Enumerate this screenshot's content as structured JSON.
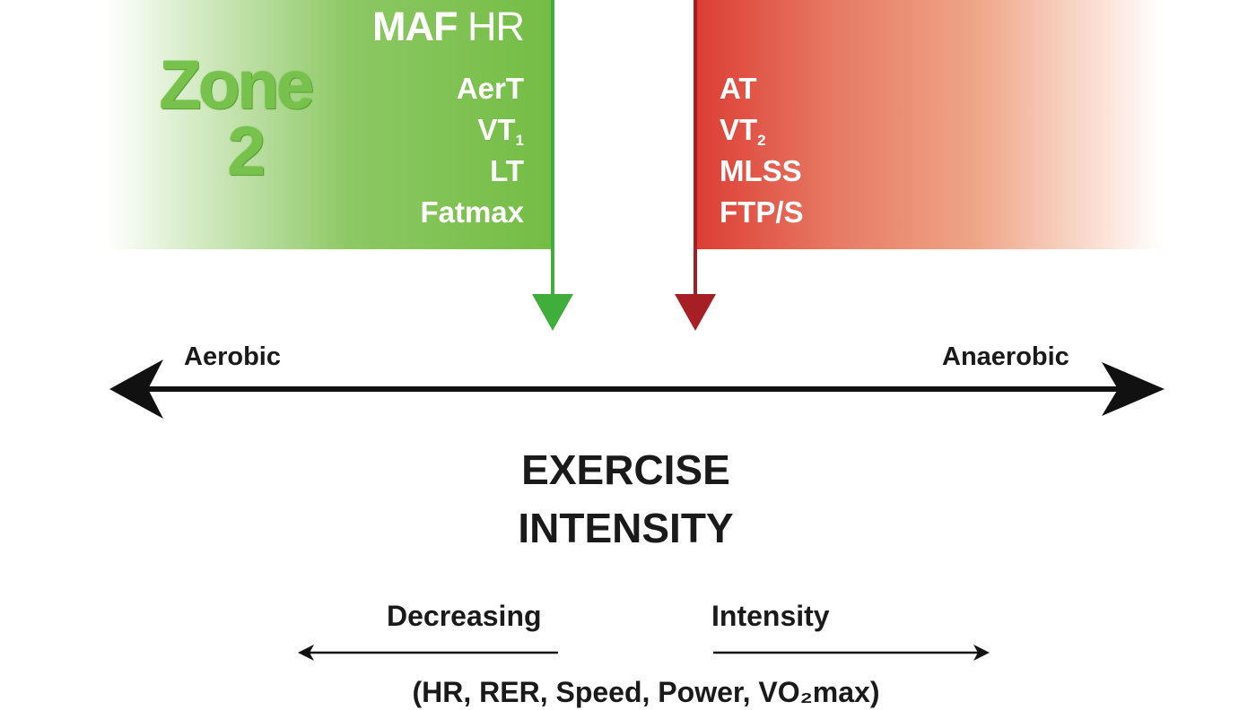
{
  "maf_title": {
    "bold": "MAF",
    "light": "HR"
  },
  "zone": {
    "word": "Zone",
    "number": "2"
  },
  "aerobic_thresholds": [
    {
      "main": "AerT",
      "sub": ""
    },
    {
      "main": "VT",
      "sub": "1"
    },
    {
      "main": "LT",
      "sub": ""
    },
    {
      "main": "Fatmax",
      "sub": ""
    }
  ],
  "anaerobic_thresholds": [
    {
      "main": "AT",
      "sub": ""
    },
    {
      "main": "VT",
      "sub": "2"
    },
    {
      "main": "MLSS",
      "sub": ""
    },
    {
      "main": "FTP/S",
      "sub": ""
    }
  ],
  "axis": {
    "left_label": "Aerobic",
    "right_label": "Anaerobic"
  },
  "heading": {
    "line1": "EXERCISE",
    "line2": "INTENSITY"
  },
  "direction": {
    "left_label": "Decreasing",
    "right_label": "Intensity"
  },
  "footer": "(HR, RER, Speed, Power, VO₂max)",
  "colors": {
    "green": "#74bd45",
    "green_arrow": "#3fae3a",
    "red": "#dc3d34",
    "red_arrow": "#a51f24",
    "text_dark": "#1a1a1a"
  }
}
